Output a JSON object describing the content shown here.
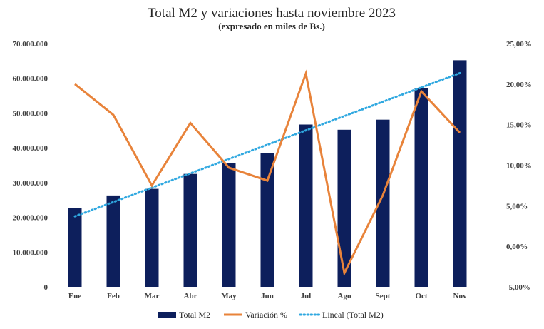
{
  "chart_data": {
    "type": "bar",
    "title": "Total M2 y variaciones hasta noviembre 2023",
    "subtitle": "(expresado en miles de Bs.)",
    "categories": [
      "Ene",
      "Feb",
      "Mar",
      "Abr",
      "May",
      "Jun",
      "Jul",
      "Ago",
      "Sept",
      "Oct",
      "Nov"
    ],
    "series": [
      {
        "name": "Total M2",
        "kind": "bar",
        "axis": "left",
        "color": "#0d1f5c",
        "values": [
          22700000,
          26300000,
          28200000,
          32500000,
          35700000,
          38500000,
          46700000,
          45200000,
          48100000,
          57200000,
          65200000
        ]
      },
      {
        "name": "Variación %",
        "kind": "line",
        "axis": "right",
        "color": "#e8833a",
        "values": [
          20.0,
          16.2,
          7.5,
          15.2,
          9.7,
          8.1,
          21.3,
          -3.3,
          6.3,
          19.1,
          14.0
        ]
      },
      {
        "name": "Lineal (Total M2)",
        "kind": "trendline",
        "axis": "left",
        "color": "#2fa8e0",
        "style": "dotted",
        "values": [
          20500000,
          24600000,
          28700000,
          32800000,
          36900000,
          41000000,
          45100000,
          49200000,
          53300000,
          57400000,
          61500000
        ]
      }
    ],
    "y_left": {
      "min": 0,
      "max": 70000000,
      "ticks": [
        0,
        10000000,
        20000000,
        30000000,
        40000000,
        50000000,
        60000000,
        70000000
      ],
      "tick_labels": [
        "0",
        "10.000.000",
        "20.000.000",
        "30.000.000",
        "40.000.000",
        "50.000.000",
        "60.000.000",
        "70.000.000"
      ]
    },
    "y_right": {
      "min": -5,
      "max": 25,
      "ticks": [
        -5,
        0,
        5,
        10,
        15,
        20,
        25
      ],
      "tick_labels": [
        "-5,00%",
        "0,00%",
        "5,00%",
        "10,00%",
        "15,00%",
        "20,00%",
        "25,00%"
      ]
    },
    "grid": false,
    "legend": "bottom"
  }
}
